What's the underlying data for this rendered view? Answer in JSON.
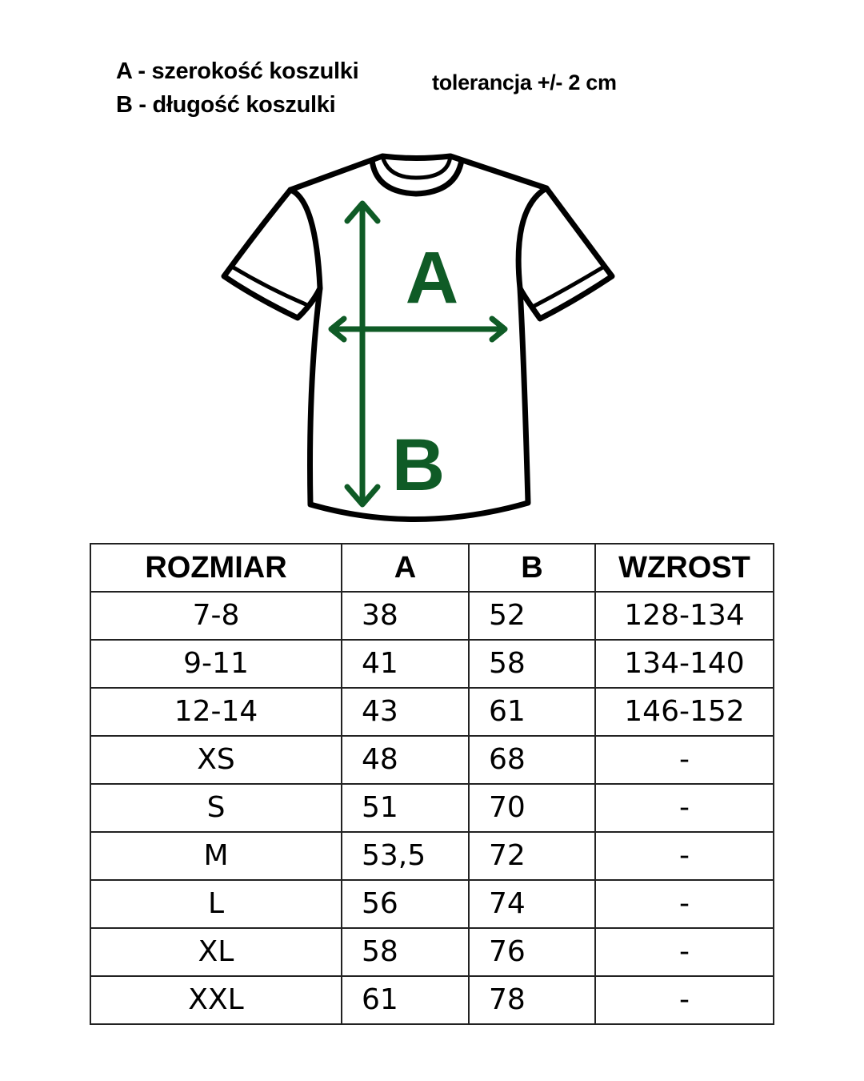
{
  "legend": {
    "line_a": "A - szerokość koszulki",
    "line_b": "B - długość koszulki",
    "tolerance": "tolerancja +/- 2 cm"
  },
  "diagram": {
    "label_a": "A",
    "label_b": "B",
    "arrow_color": "#0f5b26",
    "outline_color": "#000000"
  },
  "table": {
    "headers": [
      "ROZMIAR",
      "A",
      "B",
      "WZROST"
    ],
    "rows": [
      [
        "7-8",
        "38",
        "52",
        "128-134"
      ],
      [
        "9-11",
        "41",
        "58",
        "134-140"
      ],
      [
        "12-14",
        "43",
        "61",
        "146-152"
      ],
      [
        "XS",
        "48",
        "68",
        "-"
      ],
      [
        "S",
        "51",
        "70",
        "-"
      ],
      [
        "M",
        "53,5",
        "72",
        "-"
      ],
      [
        "L",
        "56",
        "74",
        "-"
      ],
      [
        "XL",
        "58",
        "76",
        "-"
      ],
      [
        "XXL",
        "61",
        "78",
        "-"
      ]
    ]
  }
}
